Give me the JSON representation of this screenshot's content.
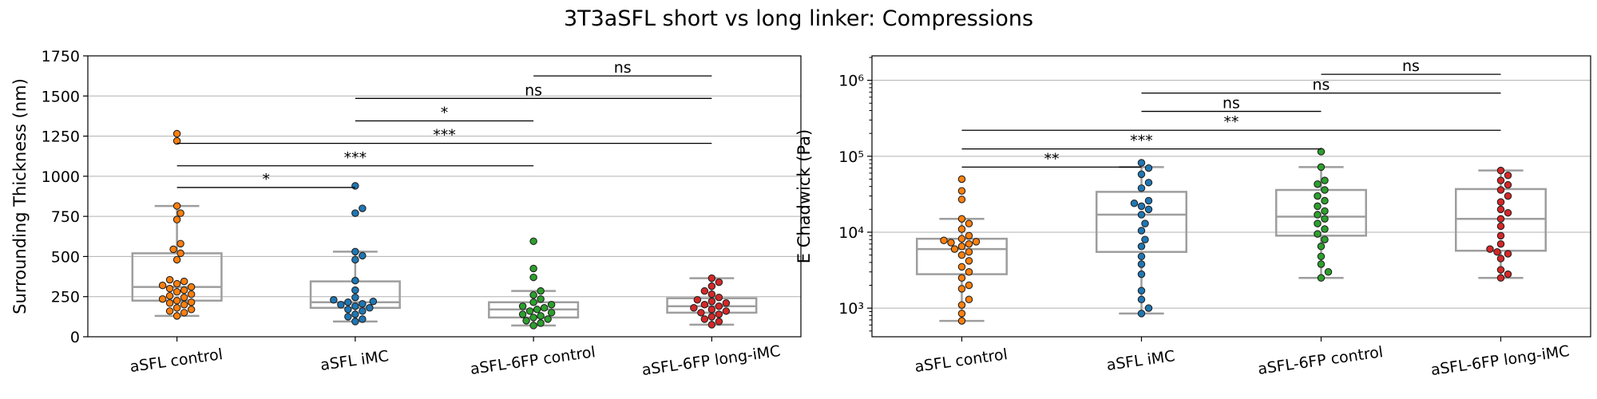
{
  "figure": {
    "title": "3T3aSFL short vs long linker: Compressions"
  },
  "colors": {
    "orange": "#ff7f0e",
    "blue": "#1f77b4",
    "green": "#2ca02c",
    "red": "#d62728",
    "box": "#9e9e9e",
    "grid": "#b0b0b0"
  },
  "chart_data": [
    {
      "type": "box",
      "overlay": "swarm",
      "ylabel": "Surrounding Thickness (nm)",
      "yscale": "linear",
      "ylim": [
        0,
        1750
      ],
      "yticks": [
        0,
        250,
        500,
        750,
        1000,
        1250,
        1500,
        1750
      ],
      "ytick_labels": [
        "0",
        "250",
        "500",
        "750",
        "1000",
        "1250",
        "1500",
        "1750"
      ],
      "grid": "horizontal",
      "categories": [
        "aSFL control",
        "aSFL iMC",
        "aSFL-6FP control",
        "aSFL-6FP long-iMC"
      ],
      "boxes": [
        {
          "q1": 225,
          "median": 310,
          "q3": 520,
          "whislo": 130,
          "whishi": 815
        },
        {
          "q1": 180,
          "median": 215,
          "q3": 345,
          "whislo": 95,
          "whishi": 530
        },
        {
          "q1": 120,
          "median": 170,
          "q3": 215,
          "whislo": 70,
          "whishi": 285
        },
        {
          "q1": 150,
          "median": 190,
          "q3": 240,
          "whislo": 75,
          "whishi": 365
        }
      ],
      "points": [
        [
          130,
          150,
          160,
          170,
          180,
          200,
          210,
          215,
          225,
          235,
          245,
          255,
          265,
          280,
          290,
          300,
          310,
          320,
          330,
          345,
          355,
          480,
          520,
          545,
          580,
          730,
          770,
          815,
          1220,
          1265
        ],
        [
          95,
          110,
          125,
          140,
          160,
          170,
          180,
          190,
          200,
          205,
          215,
          220,
          230,
          245,
          290,
          350,
          480,
          505,
          530,
          770,
          800,
          940
        ],
        [
          70,
          85,
          100,
          110,
          120,
          130,
          140,
          150,
          160,
          170,
          180,
          190,
          200,
          215,
          235,
          260,
          285,
          370,
          425,
          595
        ],
        [
          75,
          95,
          110,
          125,
          140,
          150,
          160,
          170,
          180,
          190,
          200,
          210,
          220,
          230,
          245,
          265,
          285,
          315,
          340,
          365
        ]
      ],
      "annotations": [
        {
          "from": 0,
          "to": 1,
          "y": 930,
          "label": "*"
        },
        {
          "from": 0,
          "to": 2,
          "y": 1065,
          "label": "***"
        },
        {
          "from": 0,
          "to": 3,
          "y": 1205,
          "label": "***"
        },
        {
          "from": 1,
          "to": 2,
          "y": 1345,
          "label": "*"
        },
        {
          "from": 1,
          "to": 3,
          "y": 1485,
          "label": "ns"
        },
        {
          "from": 2,
          "to": 3,
          "y": 1625,
          "label": "ns"
        }
      ]
    },
    {
      "type": "box",
      "overlay": "swarm",
      "ylabel": "E Chadwick (Pa)",
      "yscale": "log",
      "ylim": [
        420,
        2100000
      ],
      "yticks": [
        1000,
        10000,
        100000,
        1000000
      ],
      "ytick_labels": [
        "10³",
        "10⁴",
        "10⁵",
        "10⁶"
      ],
      "grid": "horizontal",
      "categories": [
        "aSFL control",
        "aSFL iMC",
        "aSFL-6FP control",
        "aSFL-6FP long-iMC"
      ],
      "boxes": [
        {
          "q1": 2800,
          "median": 6000,
          "q3": 8200,
          "whislo": 680,
          "whishi": 15000
        },
        {
          "q1": 5500,
          "median": 17000,
          "q3": 34000,
          "whislo": 850,
          "whishi": 72000
        },
        {
          "q1": 9000,
          "median": 16000,
          "q3": 36000,
          "whislo": 2500,
          "whishi": 72000
        },
        {
          "q1": 5700,
          "median": 15000,
          "q3": 37000,
          "whislo": 2500,
          "whishi": 65000
        }
      ],
      "points": [
        [
          680,
          850,
          1100,
          1300,
          1800,
          2000,
          2500,
          3000,
          3500,
          4200,
          5000,
          5500,
          6000,
          6500,
          7000,
          7300,
          7500,
          7800,
          8200,
          9000,
          11000,
          13000,
          15000,
          27000,
          35000,
          50000
        ],
        [
          850,
          1000,
          1300,
          1700,
          2800,
          3800,
          4800,
          6500,
          8000,
          10500,
          13000,
          17000,
          20000,
          22000,
          24000,
          26000,
          38000,
          45000,
          58000,
          70000,
          82000
        ],
        [
          2500,
          3000,
          3800,
          4800,
          6500,
          8000,
          9500,
          11000,
          13000,
          15000,
          17000,
          19000,
          22000,
          26000,
          30000,
          36000,
          43000,
          48000,
          72000,
          115000
        ],
        [
          2500,
          2800,
          3200,
          4500,
          5200,
          5500,
          6000,
          7000,
          9000,
          12000,
          15000,
          18000,
          20000,
          25000,
          30000,
          36000,
          42000,
          48000,
          56000,
          65000
        ]
      ],
      "annotations": [
        {
          "from": 0,
          "to": 1,
          "y": 72000,
          "label": "**"
        },
        {
          "from": 0,
          "to": 2,
          "y": 125000,
          "label": "***"
        },
        {
          "from": 0,
          "to": 3,
          "y": 220000,
          "label": "**"
        },
        {
          "from": 1,
          "to": 2,
          "y": 390000,
          "label": "ns"
        },
        {
          "from": 1,
          "to": 3,
          "y": 680000,
          "label": "ns"
        },
        {
          "from": 2,
          "to": 3,
          "y": 1200000,
          "label": "ns"
        }
      ]
    }
  ]
}
